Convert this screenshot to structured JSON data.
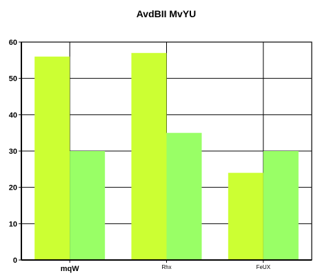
{
  "chart_data": {
    "type": "bar",
    "title": "AvdBII MvYU",
    "categories": [
      "mqW",
      "Rhx",
      "FeUX"
    ],
    "series": [
      {
        "values": [
          56,
          57,
          24
        ],
        "color": "#ccff33"
      },
      {
        "values": [
          30,
          35,
          30
        ],
        "color": "#99ff66"
      }
    ],
    "ylim": [
      0,
      60
    ],
    "yticks": [
      0,
      10,
      20,
      30,
      40,
      50,
      60
    ],
    "grid": true,
    "xlabel": "",
    "ylabel": ""
  }
}
